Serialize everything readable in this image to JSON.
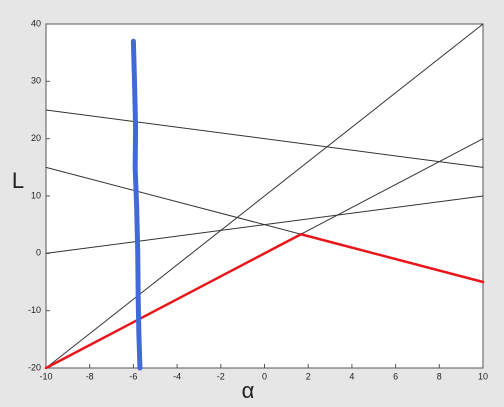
{
  "chart_data": {
    "type": "line",
    "xlabel": "α",
    "ylabel": "L",
    "xlim": [
      -10,
      10
    ],
    "ylim": [
      -20,
      40
    ],
    "xticks": [
      -10,
      -8,
      -6,
      -4,
      -2,
      0,
      2,
      4,
      6,
      8,
      10
    ],
    "yticks": [
      -20,
      -10,
      0,
      10,
      20,
      30,
      40
    ],
    "grid": false,
    "series": [
      {
        "color": "#333333",
        "width": 1,
        "x": [
          -10,
          10
        ],
        "values": [
          -20,
          40
        ]
      },
      {
        "color": "#333333",
        "width": 1,
        "x": [
          -10,
          10
        ],
        "values": [
          25,
          15
        ]
      },
      {
        "color": "#333333",
        "width": 1,
        "x": [
          -10,
          10
        ],
        "values": [
          15,
          -5
        ]
      },
      {
        "color": "#333333",
        "width": 1,
        "x": [
          -10,
          10
        ],
        "values": [
          0,
          10
        ]
      },
      {
        "color": "#333333",
        "width": 1,
        "x": [
          -10,
          10
        ],
        "values": [
          -20,
          20
        ]
      },
      {
        "color": "#e8161b",
        "width": 2.5,
        "x": [
          -10,
          1.67,
          10
        ],
        "values": [
          -20,
          3.33,
          -5
        ]
      },
      {
        "color": "#4169d8",
        "width": 5,
        "x": [
          -6.0,
          -5.95,
          -5.9,
          -5.92,
          -5.85,
          -5.8,
          -5.78,
          -5.75,
          -5.7
        ],
        "values": [
          37,
          30,
          22,
          15,
          8,
          0,
          -8,
          -14,
          -20
        ]
      }
    ]
  }
}
